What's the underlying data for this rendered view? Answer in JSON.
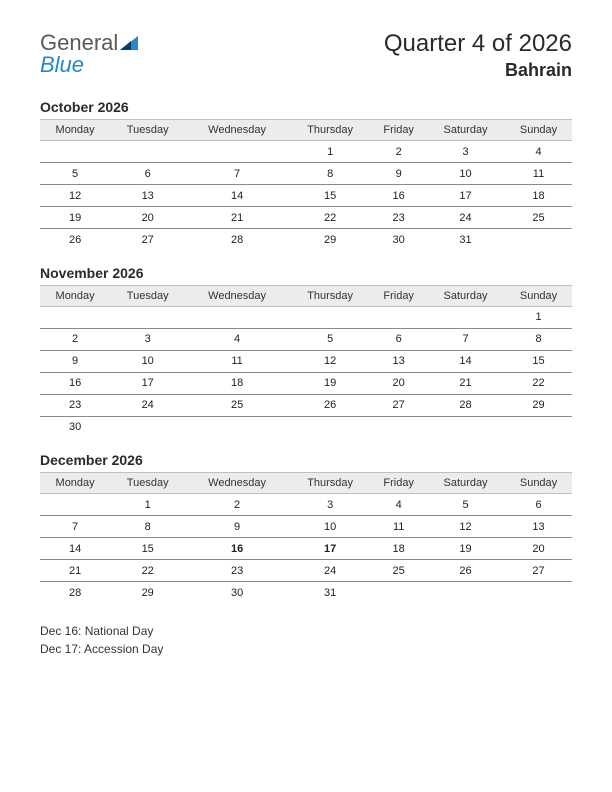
{
  "logo": {
    "general": "General",
    "blue": "Blue"
  },
  "header": {
    "title": "Quarter 4 of 2026",
    "country": "Bahrain"
  },
  "weekdays": [
    "Monday",
    "Tuesday",
    "Wednesday",
    "Thursday",
    "Friday",
    "Saturday",
    "Sunday"
  ],
  "months": [
    {
      "name": "October 2026",
      "weeks": [
        [
          "",
          "",
          "",
          "1",
          "2",
          "3",
          "4"
        ],
        [
          "5",
          "6",
          "7",
          "8",
          "9",
          "10",
          "11"
        ],
        [
          "12",
          "13",
          "14",
          "15",
          "16",
          "17",
          "18"
        ],
        [
          "19",
          "20",
          "21",
          "22",
          "23",
          "24",
          "25"
        ],
        [
          "26",
          "27",
          "28",
          "29",
          "30",
          "31",
          ""
        ]
      ],
      "holidays": []
    },
    {
      "name": "November 2026",
      "weeks": [
        [
          "",
          "",
          "",
          "",
          "",
          "",
          "1"
        ],
        [
          "2",
          "3",
          "4",
          "5",
          "6",
          "7",
          "8"
        ],
        [
          "9",
          "10",
          "11",
          "12",
          "13",
          "14",
          "15"
        ],
        [
          "16",
          "17",
          "18",
          "19",
          "20",
          "21",
          "22"
        ],
        [
          "23",
          "24",
          "25",
          "26",
          "27",
          "28",
          "29"
        ],
        [
          "30",
          "",
          "",
          "",
          "",
          "",
          ""
        ]
      ],
      "holidays": []
    },
    {
      "name": "December 2026",
      "weeks": [
        [
          "",
          "1",
          "2",
          "3",
          "4",
          "5",
          "6"
        ],
        [
          "7",
          "8",
          "9",
          "10",
          "11",
          "12",
          "13"
        ],
        [
          "14",
          "15",
          "16",
          "17",
          "18",
          "19",
          "20"
        ],
        [
          "21",
          "22",
          "23",
          "24",
          "25",
          "26",
          "27"
        ],
        [
          "28",
          "29",
          "30",
          "31",
          "",
          "",
          ""
        ]
      ],
      "holidays": [
        "16",
        "17"
      ]
    }
  ],
  "holiday_list": [
    "Dec 16: National Day",
    "Dec 17: Accession Day"
  ],
  "colors": {
    "holiday": "#d40000",
    "header_bg": "#ececec",
    "row_border": "#8a8a8a",
    "logo_blue": "#2788c8",
    "logo_gray": "#5a5a5a"
  }
}
